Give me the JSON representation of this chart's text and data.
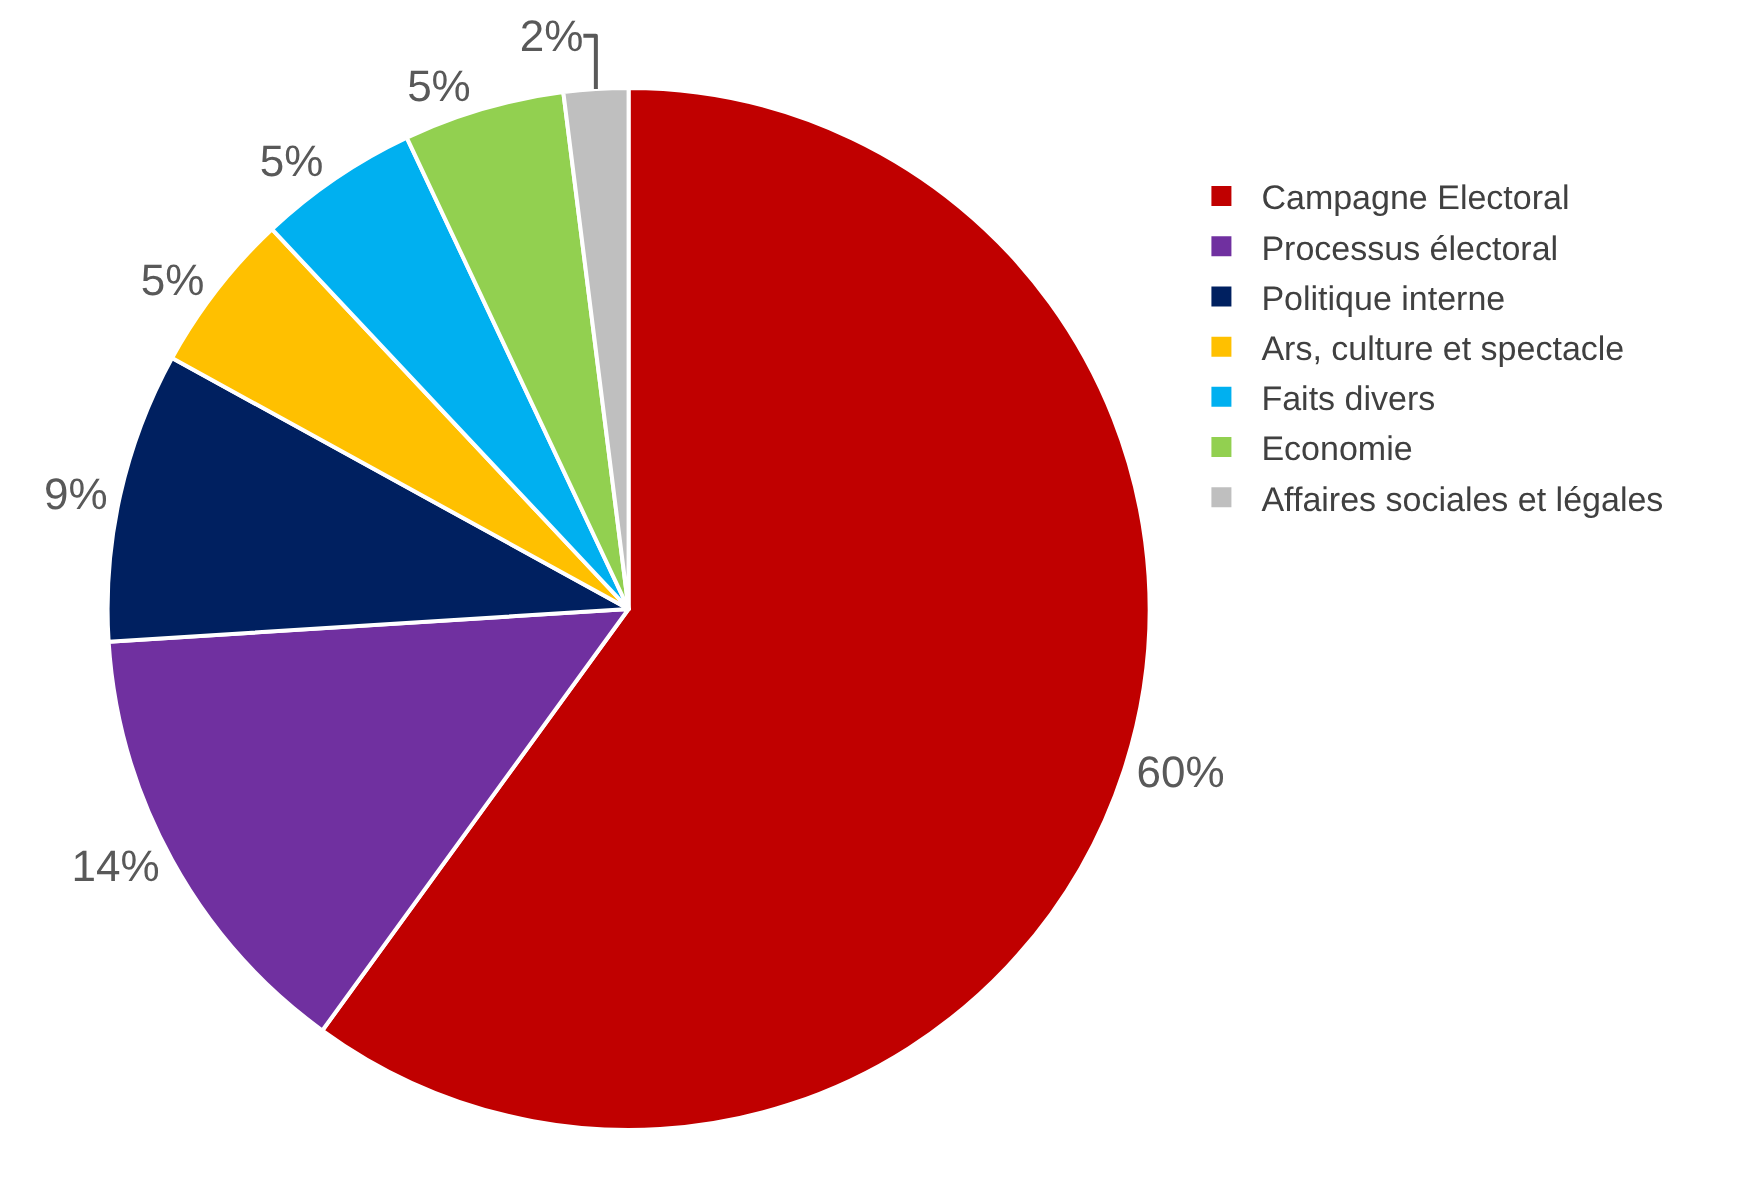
{
  "chart_data": {
    "type": "pie",
    "categories": [
      "Campagne Electoral",
      "Processus électoral",
      "Politique interne",
      "Ars, culture et spectacle",
      "Faits divers",
      "Economie",
      "Affaires sociales et légales"
    ],
    "values": [
      60,
      14,
      9,
      5,
      5,
      5,
      2
    ],
    "value_labels": [
      "60%",
      "14%",
      "9%",
      "5%",
      "5%",
      "5%",
      "2%"
    ],
    "colors": [
      "#c00000",
      "#7030a0",
      "#002060",
      "#ffc000",
      "#00b0f0",
      "#92d050",
      "#bfbfbf"
    ],
    "legend": "right"
  }
}
